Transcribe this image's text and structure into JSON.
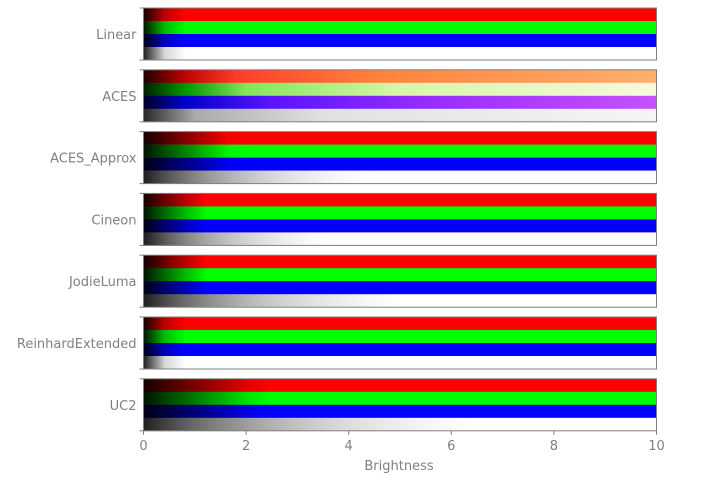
{
  "chart_data": {
    "type": "heatmap",
    "title": "",
    "xlabel": "Brightness",
    "ylabel": "",
    "xlim": [
      0,
      10
    ],
    "xticks": [
      0,
      2,
      4,
      6,
      8,
      10
    ],
    "grid": false,
    "channels": [
      "red",
      "green",
      "blue",
      "gray"
    ],
    "operators": [
      {
        "name": "Linear",
        "saturation_brightness": {
          "red": 1.0,
          "green": 1.0,
          "blue": 1.0,
          "gray": 1.0
        }
      },
      {
        "name": "ACES",
        "saturation_brightness": {
          "red": 10,
          "green": 10,
          "blue": 10,
          "gray": 10
        },
        "hue_shift": true
      },
      {
        "name": "ACES_Approx",
        "saturation_brightness": {
          "red": 3.0,
          "green": 3.0,
          "blue": 3.0,
          "gray": 6.0
        }
      },
      {
        "name": "Cineon",
        "saturation_brightness": {
          "red": 2.0,
          "green": 2.0,
          "blue": 2.0,
          "gray": 5.0
        }
      },
      {
        "name": "JodieLuma",
        "saturation_brightness": {
          "red": 2.0,
          "green": 2.0,
          "blue": 2.0,
          "gray": 7.0
        }
      },
      {
        "name": "ReinhardExtended",
        "saturation_brightness": {
          "red": 1.0,
          "green": 1.0,
          "blue": 1.0,
          "gray": 1.0
        }
      },
      {
        "name": "UC2",
        "saturation_brightness": {
          "red": 4.0,
          "green": 4.0,
          "blue": 4.0,
          "gray": 9.0
        }
      }
    ]
  },
  "colors": {
    "axis": "#808080",
    "red": "#ff0000",
    "green": "#00ff00",
    "blue": "#0000ff",
    "white": "#ffffff"
  }
}
